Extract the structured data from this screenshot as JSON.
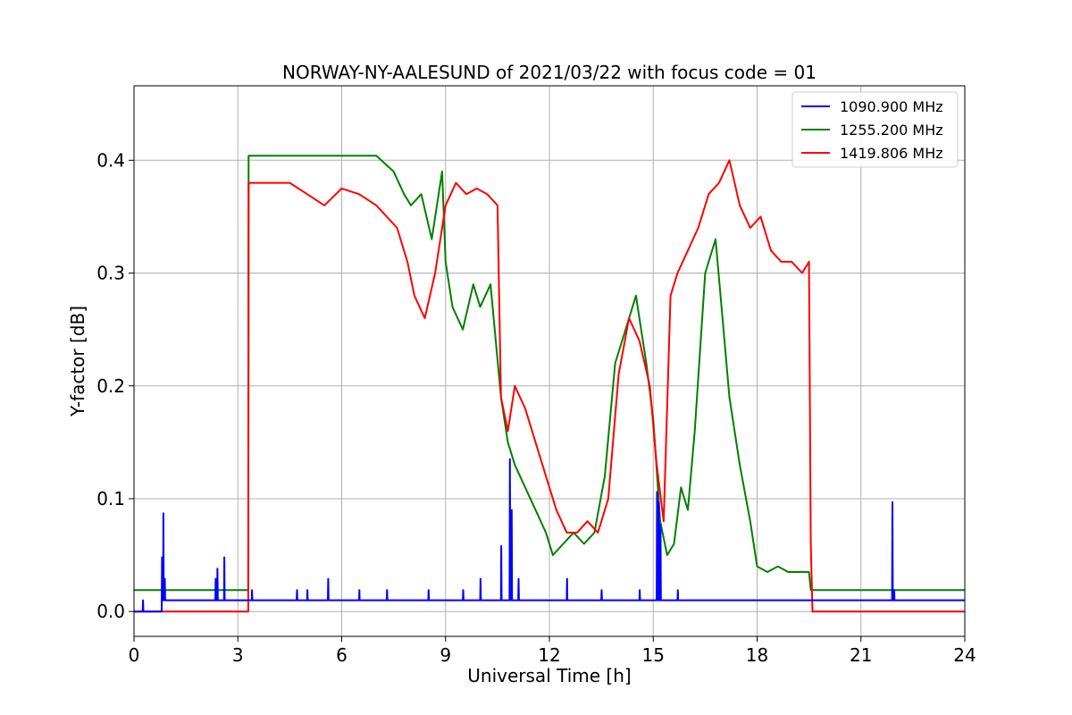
{
  "chart_data": {
    "type": "line",
    "title": "NORWAY-NY-AALESUND of 2021/03/22 with focus code = 01",
    "xlabel": "Universal Time [h]",
    "ylabel": "Y-factor [dB]",
    "xlim": [
      0,
      24
    ],
    "ylim": [
      -0.022,
      0.466
    ],
    "xticks": [
      0,
      3,
      6,
      9,
      12,
      15,
      18,
      21,
      24
    ],
    "xtick_labels": [
      "0",
      "3",
      "6",
      "9",
      "12",
      "15",
      "18",
      "21",
      "24"
    ],
    "yticks": [
      0.0,
      0.1,
      0.2,
      0.3,
      0.4
    ],
    "ytick_labels": [
      "0.0",
      "0.1",
      "0.2",
      "0.3",
      "0.4"
    ],
    "grid": true,
    "legend_position": "top-right",
    "series": [
      {
        "name": "1090.900 MHz",
        "color": "#0000ff",
        "x": [
          0,
          0.25,
          0.26,
          0.27,
          0.8,
          0.81,
          0.82,
          0.84,
          0.85,
          0.86,
          0.88,
          0.89,
          0.9,
          0.92,
          2.35,
          2.36,
          2.37,
          2.4,
          2.41,
          2.42,
          2.6,
          2.61,
          2.62,
          3.4,
          3.41,
          3.42,
          4.7,
          4.71,
          4.72,
          5.0,
          5.01,
          5.02,
          5.6,
          5.61,
          5.62,
          6.5,
          6.51,
          6.52,
          7.3,
          7.31,
          7.32,
          8.5,
          8.51,
          8.52,
          9.5,
          9.51,
          9.52,
          10.0,
          10.01,
          10.02,
          10.6,
          10.61,
          10.62,
          10.85,
          10.86,
          10.87,
          10.9,
          10.91,
          10.92,
          11.1,
          11.11,
          11.12,
          12.5,
          12.51,
          12.52,
          13.5,
          13.51,
          13.52,
          14.6,
          14.61,
          14.62,
          15.1,
          15.11,
          15.12,
          15.15,
          15.16,
          15.17,
          15.2,
          15.21,
          15.22,
          15.7,
          15.71,
          15.72,
          21.9,
          21.91,
          21.92,
          21.95,
          21.96,
          21.97,
          24
        ],
        "y": [
          0.0,
          0.0,
          0.01,
          0.0,
          0.0,
          0.048,
          0.01,
          0.01,
          0.087,
          0.01,
          0.01,
          0.029,
          0.01,
          0.01,
          0.01,
          0.029,
          0.01,
          0.01,
          0.038,
          0.01,
          0.01,
          0.048,
          0.01,
          0.01,
          0.019,
          0.01,
          0.01,
          0.019,
          0.01,
          0.01,
          0.019,
          0.01,
          0.01,
          0.029,
          0.01,
          0.01,
          0.019,
          0.01,
          0.01,
          0.019,
          0.01,
          0.01,
          0.019,
          0.01,
          0.01,
          0.019,
          0.01,
          0.01,
          0.029,
          0.01,
          0.01,
          0.058,
          0.01,
          0.01,
          0.135,
          0.01,
          0.01,
          0.09,
          0.01,
          0.01,
          0.029,
          0.01,
          0.01,
          0.029,
          0.01,
          0.01,
          0.019,
          0.01,
          0.01,
          0.019,
          0.01,
          0.01,
          0.106,
          0.01,
          0.01,
          0.097,
          0.01,
          0.01,
          0.077,
          0.01,
          0.01,
          0.019,
          0.01,
          0.01,
          0.097,
          0.01,
          0.01,
          0.019,
          0.01,
          0.01
        ]
      },
      {
        "name": "1255.200 MHz",
        "color": "#008000",
        "x": [
          0,
          3.3,
          3.31,
          3.5,
          4.0,
          4.5,
          5.0,
          5.5,
          6.0,
          6.5,
          7.0,
          7.5,
          7.8,
          8.0,
          8.3,
          8.6,
          8.9,
          9.0,
          9.2,
          9.5,
          9.8,
          10.0,
          10.3,
          10.6,
          10.8,
          11.0,
          11.3,
          11.6,
          11.9,
          12.1,
          12.4,
          12.7,
          13.0,
          13.3,
          13.6,
          13.9,
          14.2,
          14.5,
          14.8,
          15.0,
          15.2,
          15.4,
          15.6,
          15.8,
          16.0,
          16.2,
          16.5,
          16.8,
          17.0,
          17.2,
          17.5,
          17.8,
          18.0,
          18.3,
          18.6,
          18.9,
          19.2,
          19.5,
          19.55,
          19.6,
          20.0,
          20.5,
          21.0,
          21.5,
          22.0,
          24
        ],
        "y": [
          0.019,
          0.019,
          0.404,
          0.404,
          0.404,
          0.404,
          0.404,
          0.404,
          0.404,
          0.404,
          0.404,
          0.39,
          0.37,
          0.36,
          0.37,
          0.33,
          0.39,
          0.31,
          0.27,
          0.25,
          0.29,
          0.27,
          0.29,
          0.19,
          0.15,
          0.13,
          0.11,
          0.09,
          0.07,
          0.05,
          0.06,
          0.07,
          0.06,
          0.07,
          0.12,
          0.22,
          0.25,
          0.28,
          0.22,
          0.17,
          0.08,
          0.05,
          0.06,
          0.11,
          0.09,
          0.16,
          0.3,
          0.33,
          0.26,
          0.19,
          0.13,
          0.08,
          0.04,
          0.035,
          0.04,
          0.035,
          0.035,
          0.035,
          0.019,
          0.019,
          0.019,
          0.019,
          0.019,
          0.019,
          0.019,
          0.019
        ]
      },
      {
        "name": "1419.806 MHz",
        "color": "#ff0000",
        "x": [
          0,
          3.3,
          3.31,
          3.5,
          4.0,
          4.5,
          5.0,
          5.5,
          6.0,
          6.5,
          7.0,
          7.3,
          7.6,
          7.9,
          8.1,
          8.4,
          8.7,
          9.0,
          9.3,
          9.6,
          9.9,
          10.2,
          10.5,
          10.6,
          10.8,
          11.0,
          11.3,
          11.6,
          11.9,
          12.2,
          12.5,
          12.8,
          13.1,
          13.4,
          13.7,
          14.0,
          14.3,
          14.6,
          14.9,
          15.1,
          15.3,
          15.5,
          15.7,
          16.0,
          16.3,
          16.6,
          16.9,
          17.2,
          17.5,
          17.8,
          18.1,
          18.4,
          18.7,
          19.0,
          19.3,
          19.5,
          19.55,
          19.6,
          24
        ],
        "y": [
          0.0,
          0.0,
          0.38,
          0.38,
          0.38,
          0.38,
          0.37,
          0.36,
          0.375,
          0.37,
          0.36,
          0.35,
          0.34,
          0.31,
          0.28,
          0.26,
          0.3,
          0.36,
          0.38,
          0.37,
          0.375,
          0.37,
          0.36,
          0.19,
          0.16,
          0.2,
          0.18,
          0.15,
          0.12,
          0.09,
          0.07,
          0.07,
          0.08,
          0.07,
          0.1,
          0.21,
          0.26,
          0.24,
          0.2,
          0.13,
          0.08,
          0.28,
          0.3,
          0.32,
          0.34,
          0.37,
          0.38,
          0.4,
          0.36,
          0.34,
          0.35,
          0.32,
          0.31,
          0.31,
          0.3,
          0.31,
          0.06,
          0.0,
          0.0
        ]
      }
    ]
  }
}
